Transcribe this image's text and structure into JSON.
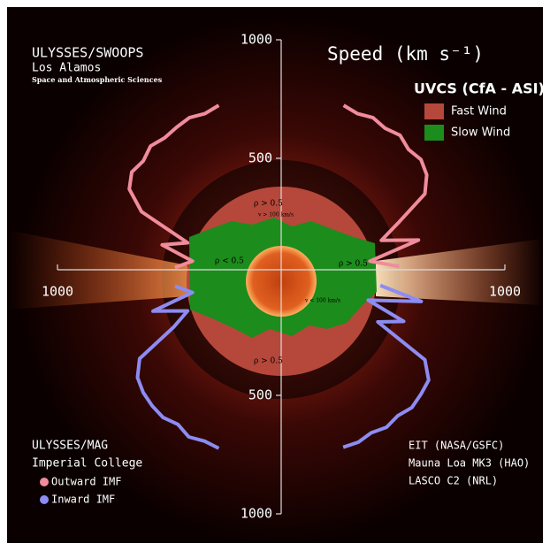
{
  "chart_data": {
    "type": "polar",
    "title": "Speed (km s⁻¹)",
    "credits_top": [
      "ULYSSES/SWOOPS",
      "Los Alamos",
      "Space and Atmospheric Sciences"
    ],
    "credits_mag": [
      "ULYSSES/MAG",
      "Imperial College"
    ],
    "credits_bottom": [
      "EIT (NASA/GSFC)",
      "Mauna Loa MK3 (HAO)",
      "LASCO C2 (NRL)"
    ],
    "disk_legend_title": "UVCS (CfA - ASI)",
    "disk_legend": [
      {
        "name": "Fast Wind",
        "color": "#b5483a"
      },
      {
        "name": "Slow Wind",
        "color": "#1c8c1c"
      }
    ],
    "annotations": [
      "ρ > 0.5",
      "v > 100 km/s",
      "ρ < 0.5",
      "ρ > 0.5",
      "v < 100 km/s",
      "ρ > 0.5"
    ],
    "rlim": [
      0,
      1000
    ],
    "rticks": [
      500,
      1000
    ],
    "series": [
      {
        "name": "Outward IMF",
        "color": "#f08c9c",
        "x": [
          20,
          25,
          30,
          35,
          40,
          45,
          50,
          55,
          60,
          65,
          70,
          75,
          80,
          85,
          180,
          275,
          280,
          285,
          290,
          295,
          300,
          305,
          310,
          315,
          320,
          325,
          330,
          335,
          340
        ],
        "values": [
          770,
          760,
          775,
          765,
          780,
          760,
          770,
          750,
          700,
          550,
          450,
          600,
          380,
          500,
          null,
          450,
          380,
          520,
          420,
          650,
          740,
          770,
          760,
          780,
          765,
          770,
          775,
          760,
          770
        ]
      },
      {
        "name": "Inward IMF",
        "color": "#8c8cf2",
        "x": [
          95,
          100,
          105,
          110,
          115,
          120,
          125,
          130,
          135,
          140,
          145,
          150,
          155,
          160,
          180,
          200,
          205,
          210,
          215,
          220,
          225,
          230,
          235,
          240,
          245,
          250,
          255,
          260,
          265
        ],
        "values": [
          420,
          600,
          380,
          550,
          450,
          700,
          760,
          770,
          780,
          765,
          775,
          760,
          770,
          765,
          null,
          770,
          765,
          780,
          760,
          775,
          770,
          760,
          740,
          690,
          500,
          420,
          560,
          380,
          450
        ]
      }
    ]
  }
}
